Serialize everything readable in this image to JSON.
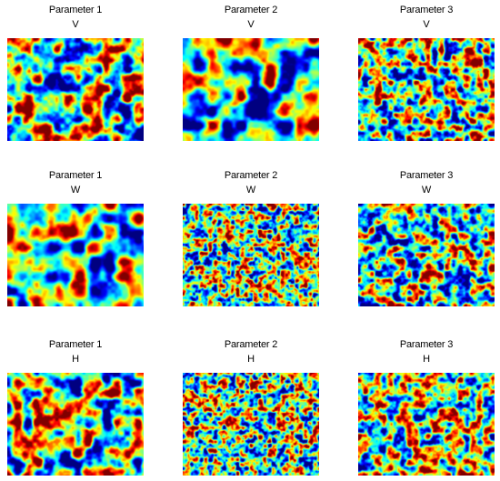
{
  "figure": {
    "rows": [
      {
        "row_label": "V",
        "panels": [
          {
            "parameter": "Parameter 1",
            "variable": "V",
            "texture": "medium",
            "bias": 0.0
          },
          {
            "parameter": "Parameter 2",
            "variable": "V",
            "texture": "coarse",
            "bias": -0.25
          },
          {
            "parameter": "Parameter 3",
            "variable": "V",
            "texture": "fine",
            "bias": 0.05
          }
        ]
      },
      {
        "row_label": "W",
        "panels": [
          {
            "parameter": "Parameter 1",
            "variable": "W",
            "texture": "coarse",
            "bias": 0.05
          },
          {
            "parameter": "Parameter 2",
            "variable": "W",
            "texture": "veryfine",
            "bias": 0.0
          },
          {
            "parameter": "Parameter 3",
            "variable": "W",
            "texture": "fine",
            "bias": -0.05
          }
        ]
      },
      {
        "row_label": "H",
        "panels": [
          {
            "parameter": "Parameter 1",
            "variable": "H",
            "texture": "medium",
            "bias": 0.05
          },
          {
            "parameter": "Parameter 2",
            "variable": "H",
            "texture": "veryfine",
            "bias": -0.05
          },
          {
            "parameter": "Parameter 3",
            "variable": "H",
            "texture": "fine",
            "bias": 0.05
          }
        ]
      }
    ],
    "colormap": "jet"
  }
}
